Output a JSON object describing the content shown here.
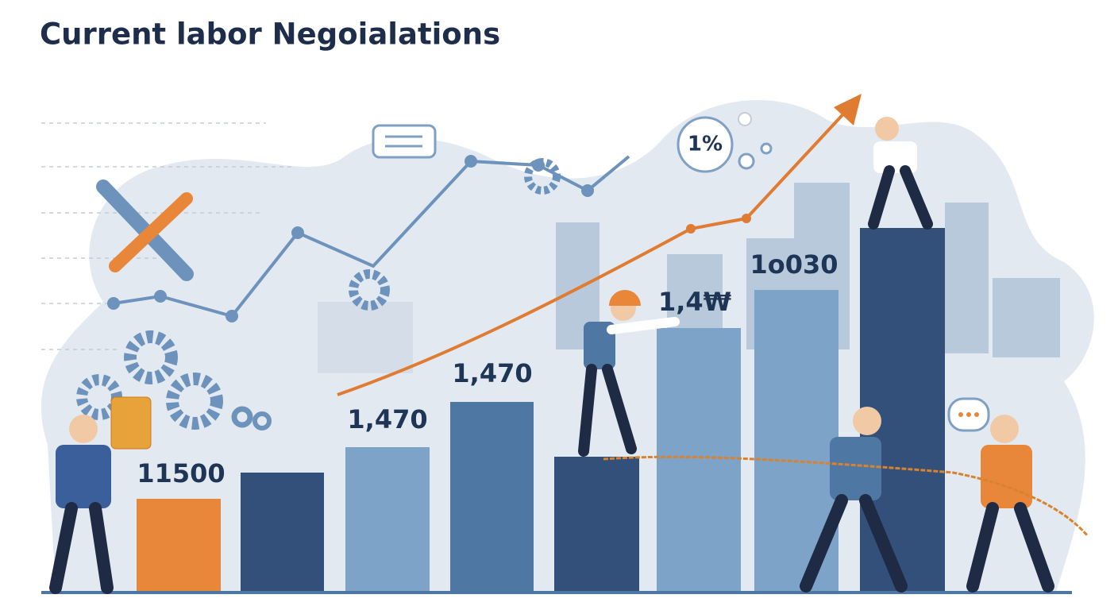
{
  "title": "Current labor Negoialations",
  "bar_labels": [
    "11500",
    "1,470",
    "1,470",
    "1,4₩",
    "1o030"
  ],
  "bubble": "1%"
}
